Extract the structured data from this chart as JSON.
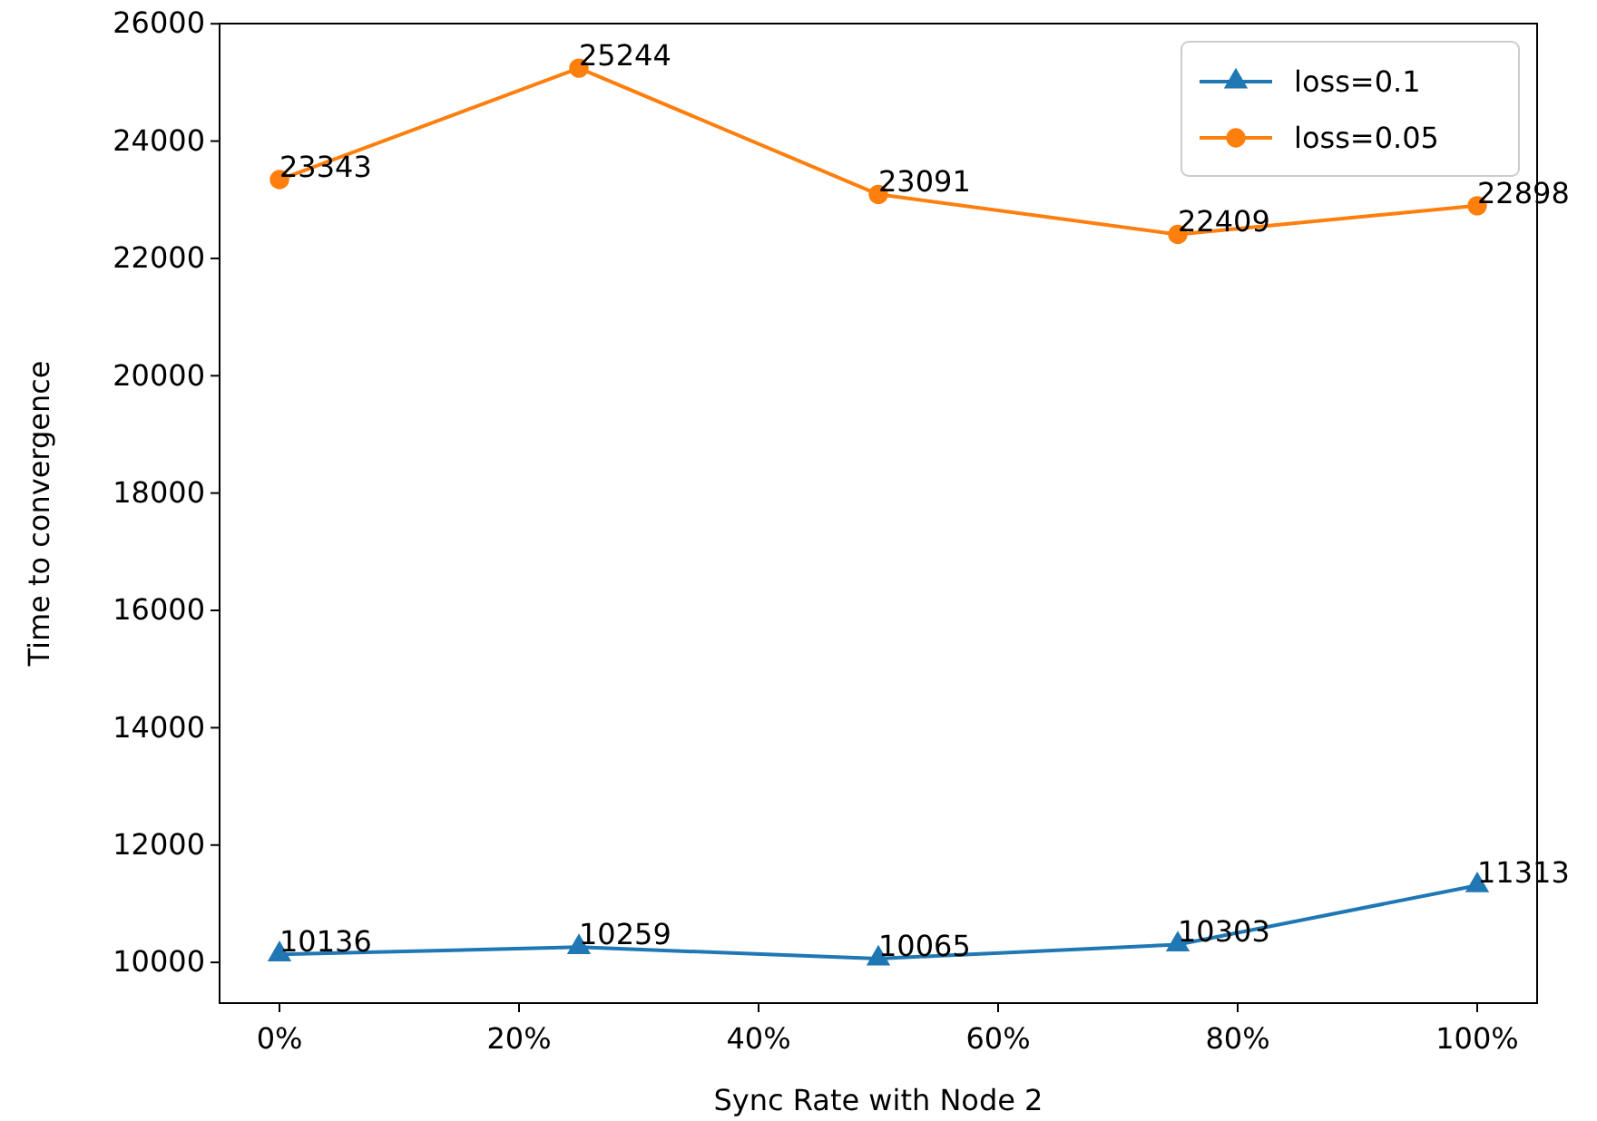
{
  "chart_data": {
    "type": "line",
    "xlabel": "Sync Rate with Node 2",
    "ylabel": "Time to convergence",
    "x": [
      0,
      25,
      50,
      75,
      100
    ],
    "series": [
      {
        "name": "loss=0.1",
        "color": "#1f77b4",
        "marker": "triangle",
        "values": [
          10136,
          10259,
          10065,
          10303,
          11313
        ]
      },
      {
        "name": "loss=0.05",
        "color": "#ff7f0e",
        "marker": "circle",
        "values": [
          23343,
          25244,
          23091,
          22409,
          22898
        ]
      }
    ],
    "xlim": [
      -5,
      105
    ],
    "ylim": [
      9306,
      26003
    ],
    "xticks": [
      {
        "value": 0,
        "label": "0%"
      },
      {
        "value": 20,
        "label": "20%"
      },
      {
        "value": 40,
        "label": "40%"
      },
      {
        "value": 60,
        "label": "60%"
      },
      {
        "value": 80,
        "label": "80%"
      },
      {
        "value": 100,
        "label": "100%"
      }
    ],
    "yticks": [
      10000,
      12000,
      14000,
      16000,
      18000,
      20000,
      22000,
      24000,
      26000
    ],
    "data_labels": true,
    "legend": "top right",
    "line_style": "solid"
  }
}
